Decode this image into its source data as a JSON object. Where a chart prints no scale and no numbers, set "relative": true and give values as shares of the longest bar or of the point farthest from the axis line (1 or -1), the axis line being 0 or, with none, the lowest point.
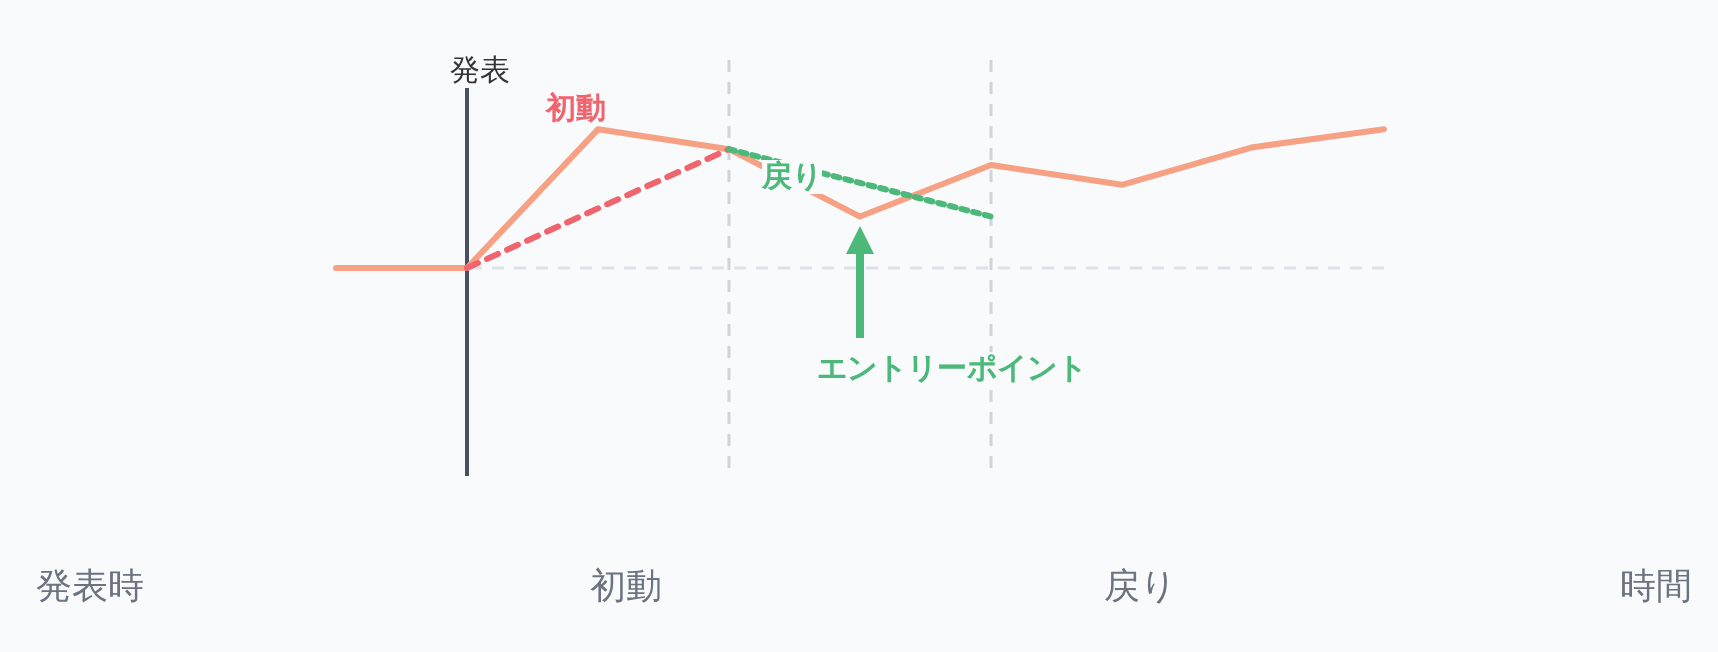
{
  "chart_data": {
    "type": "line",
    "relative": true,
    "categories": [
      null,
      null,
      null,
      null,
      null,
      null,
      null,
      null,
      null
    ],
    "series": [
      {
        "color": "#f7a184",
        "line_style": "solid",
        "values": [
          0,
          0,
          1,
          0.857,
          0.371,
          0.743,
          0.6,
          0.871,
          1
        ]
      },
      {
        "color": "#f0646e",
        "line_style": "dashed",
        "values": [
          null,
          0,
          0.43,
          0.857,
          null,
          null,
          null,
          null,
          null
        ]
      },
      {
        "color": "#4cb87a",
        "line_style": "dotted",
        "values": [
          null,
          null,
          null,
          0.857,
          0.614,
          0.371,
          null,
          null,
          null
        ]
      }
    ],
    "ref_lines": [
      {
        "axis": "y",
        "value": 0,
        "color": "#dde1e8",
        "line_style": "dashed"
      }
    ],
    "annotations": [
      "発表",
      "初動",
      "戻り",
      "エントリーポイント",
      "発表時",
      "初動",
      "戻り",
      "時間"
    ]
  }
}
